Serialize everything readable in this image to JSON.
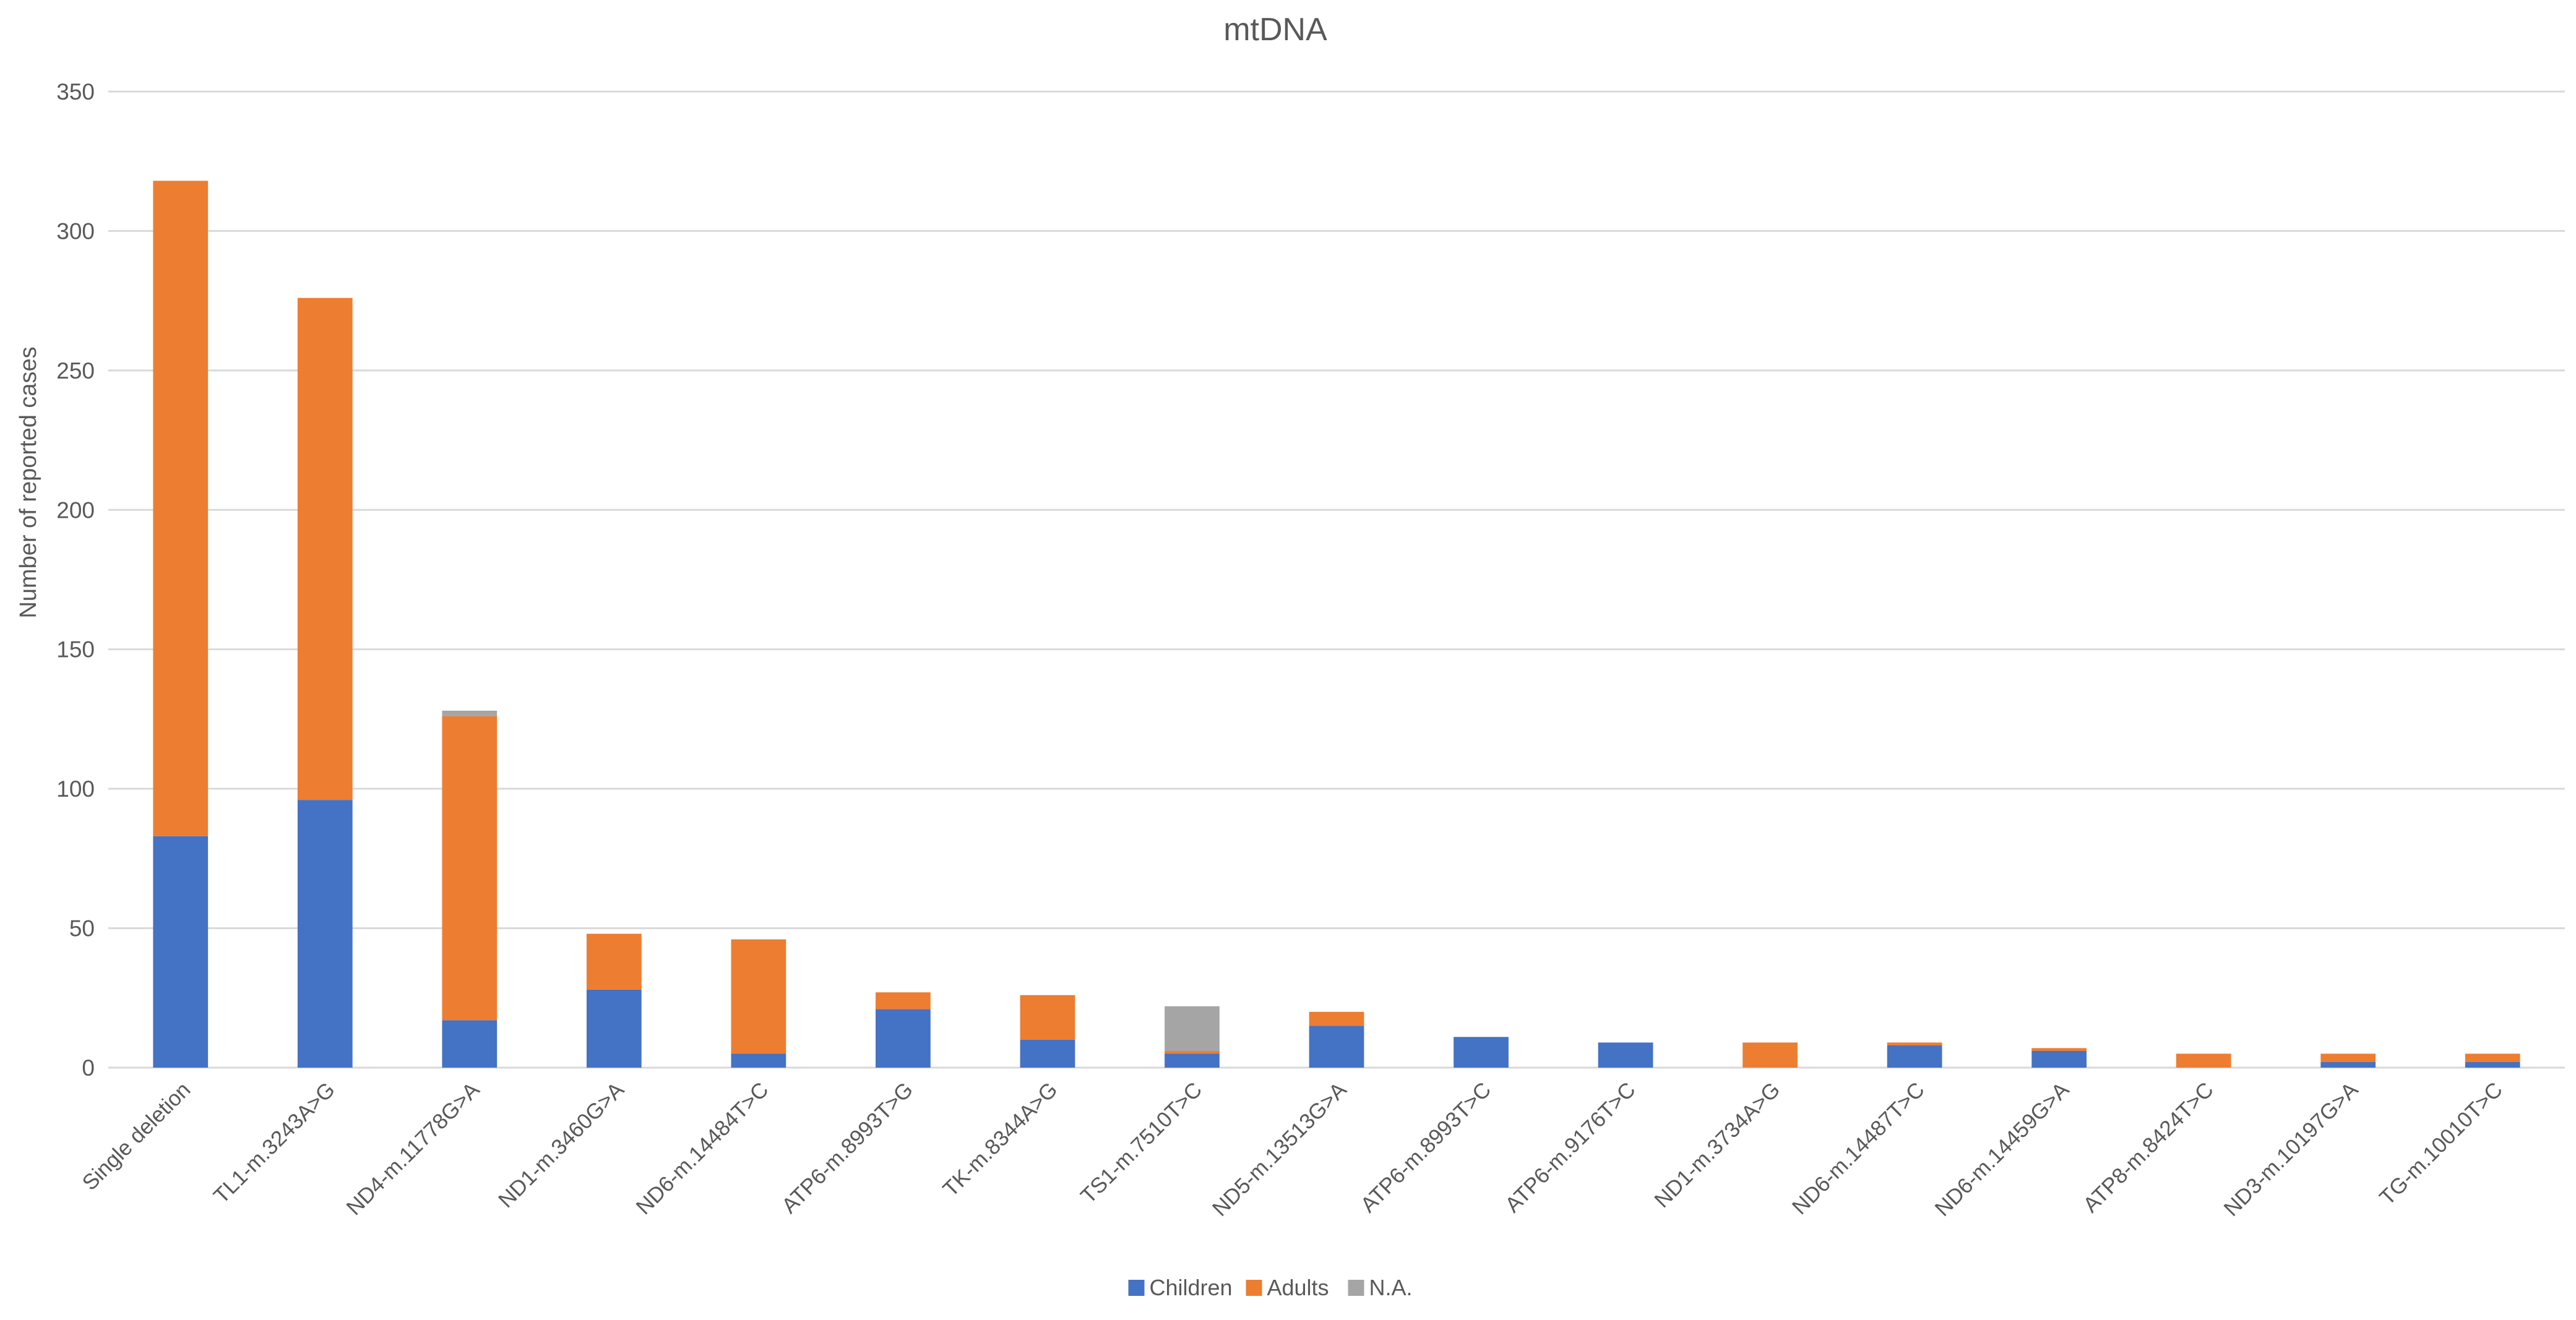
{
  "chart_data": {
    "type": "bar",
    "stacked": true,
    "title": "mtDNA",
    "xlabel": "",
    "ylabel": "Number of reported cases",
    "ylim": [
      0,
      350
    ],
    "yticks": [
      0,
      50,
      100,
      150,
      200,
      250,
      300,
      350
    ],
    "grid": true,
    "legend_position": "bottom",
    "categories": [
      "Single deletion",
      "TL1-m.3243A>G",
      "ND4-m.11778G>A",
      "ND1-m.3460G>A",
      "ND6-m.14484T>C",
      "ATP6-m.8993T>G",
      "TK-m.8344A>G",
      "TS1-m.7510T>C",
      "ND5-m.13513G>A",
      "ATP6-m.8993T>C",
      "ATP6-m.9176T>C",
      "ND1-m.3734A>G",
      "ND6-m.14487T>C",
      "ND6-m.14459G>A",
      "ATP8-m.8424T>C",
      "ND3-m.10197G>A",
      "TG-m.10010T>C"
    ],
    "series": [
      {
        "name": "Children",
        "color": "#4472C4",
        "values": [
          83,
          96,
          17,
          28,
          5,
          21,
          10,
          5,
          15,
          11,
          9,
          0,
          8,
          6,
          0,
          2,
          2
        ]
      },
      {
        "name": "Adults",
        "color": "#ED7D31",
        "values": [
          235,
          180,
          109,
          20,
          41,
          6,
          16,
          1,
          5,
          0,
          0,
          9,
          1,
          1,
          5,
          3,
          3
        ]
      },
      {
        "name": "N.A.",
        "color": "#A5A5A5",
        "values": [
          0,
          0,
          2,
          0,
          0,
          0,
          0,
          16,
          0,
          0,
          0,
          0,
          0,
          0,
          0,
          0,
          0
        ]
      }
    ]
  },
  "colors": {
    "gridline": "#D9D9D9",
    "axis_line": "#D9D9D9",
    "text": "#595959"
  }
}
